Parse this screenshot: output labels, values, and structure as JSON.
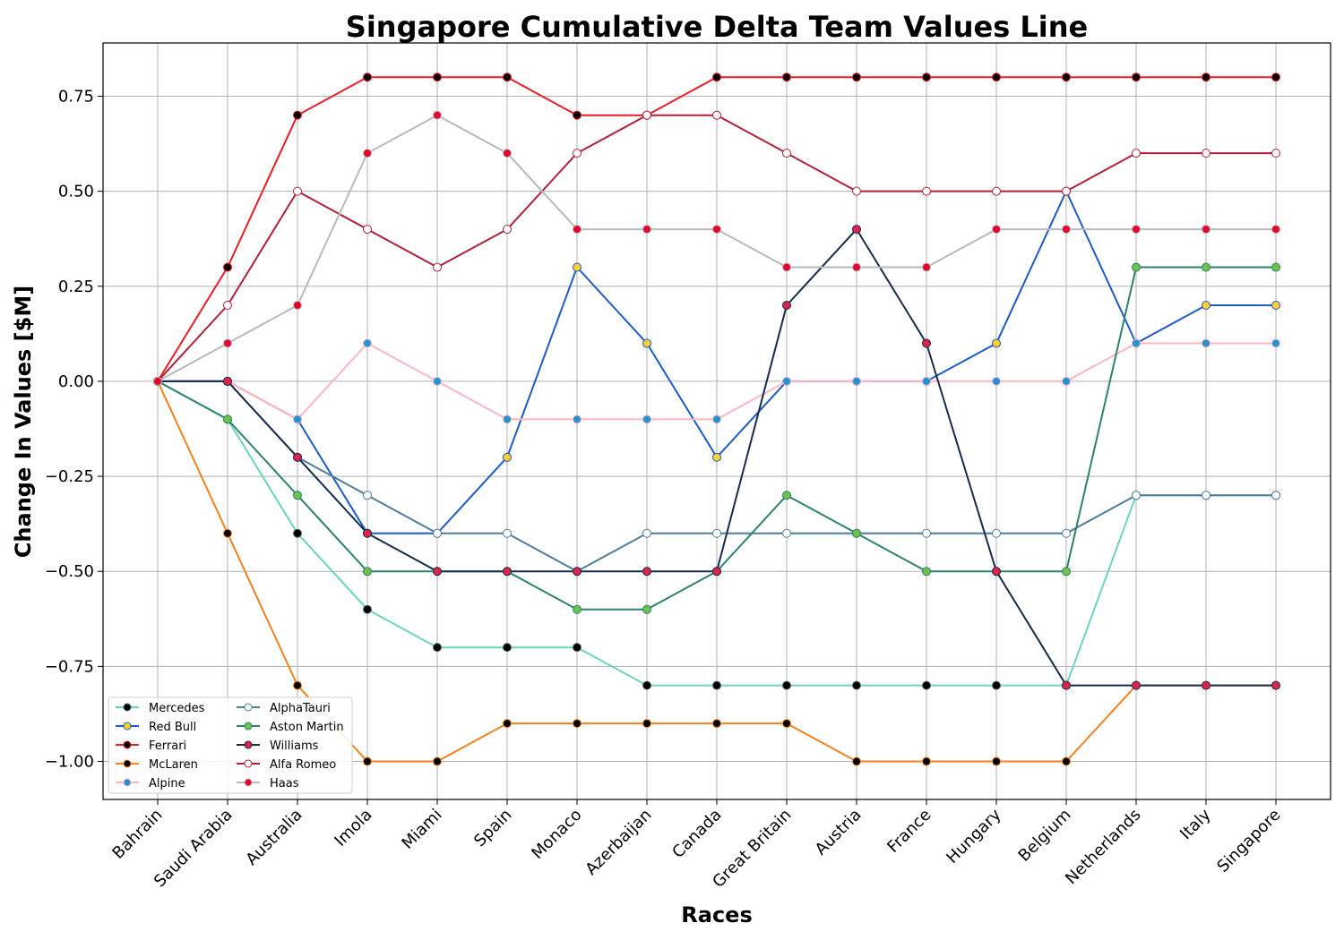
{
  "chart_data": {
    "type": "line",
    "title": "Singapore Cumulative Delta Team Values Line",
    "xlabel": "Races",
    "ylabel": "Change In Values [$M]",
    "categories": [
      "Bahrain",
      "Saudi Arabia",
      "Australia",
      "Imola",
      "Miami",
      "Spain",
      "Monaco",
      "Azerbaijan",
      "Canada",
      "Great Britain",
      "Austria",
      "France",
      "Hungary",
      "Belgium",
      "Netherlands",
      "Italy",
      "Singapore"
    ],
    "ylim": [
      -1.1,
      0.89
    ],
    "yticks": [
      -1.0,
      -0.75,
      -0.5,
      -0.25,
      0.0,
      0.25,
      0.5,
      0.75
    ],
    "ytick_labels": [
      "−1.00",
      "−0.75",
      "−0.50",
      "−0.25",
      "0.00",
      "0.25",
      "0.50",
      "0.75"
    ],
    "grid": true,
    "legend_position": "lower-left",
    "series": [
      {
        "name": "Mercedes",
        "line_color": "#6cd3bf",
        "marker_face": "#000000",
        "marker_edge": "#4d6a64",
        "values": [
          0,
          -0.1,
          -0.4,
          -0.6,
          -0.7,
          -0.7,
          -0.7,
          -0.8,
          -0.8,
          -0.8,
          -0.8,
          -0.8,
          -0.8,
          -0.8,
          -0.3,
          -0.3,
          -0.3
        ]
      },
      {
        "name": "Red Bull",
        "line_color": "#1e5bc6",
        "marker_face": "#ffd12e",
        "marker_edge": "#1e5bc6",
        "values": [
          0,
          0,
          -0.1,
          -0.4,
          -0.4,
          -0.2,
          0.3,
          0.1,
          -0.2,
          0,
          0,
          0,
          0.1,
          0.5,
          0.1,
          0.2,
          0.2
        ]
      },
      {
        "name": "Ferrari",
        "line_color": "#ed1c24",
        "marker_face": "#000000",
        "marker_edge": "#ed1c24",
        "values": [
          0,
          0.3,
          0.7,
          0.8,
          0.8,
          0.8,
          0.7,
          0.7,
          0.8,
          0.8,
          0.8,
          0.8,
          0.8,
          0.8,
          0.8,
          0.8,
          0.8
        ]
      },
      {
        "name": "McLaren",
        "line_color": "#f58020",
        "marker_face": "#000000",
        "marker_edge": "#f58020",
        "values": [
          0,
          -0.4,
          -0.8,
          -1.0,
          -1.0,
          -0.9,
          -0.9,
          -0.9,
          -0.9,
          -0.9,
          -1.0,
          -1.0,
          -1.0,
          -1.0,
          -0.8,
          -0.8,
          -0.8
        ]
      },
      {
        "name": "Alpine",
        "line_color": "#ffb6c1",
        "marker_face": "#2293d1",
        "marker_edge": "#ffb6c1",
        "values": [
          0,
          0,
          -0.1,
          0.1,
          0,
          -0.1,
          -0.1,
          -0.1,
          -0.1,
          0,
          0,
          0,
          0,
          0,
          0.1,
          0.1,
          0.1
        ]
      },
      {
        "name": "AlphaTauri",
        "line_color": "#4e7c9b",
        "marker_face": "#ffffff",
        "marker_edge": "#4e7c9b",
        "values": [
          0,
          0,
          -0.2,
          -0.3,
          -0.4,
          -0.4,
          -0.5,
          -0.4,
          -0.4,
          -0.4,
          -0.4,
          -0.4,
          -0.4,
          -0.4,
          -0.3,
          -0.3,
          -0.3
        ]
      },
      {
        "name": "Aston Martin",
        "line_color": "#2d826d",
        "marker_face": "#6cc24a",
        "marker_edge": "#2d826d",
        "values": [
          0,
          -0.1,
          -0.3,
          -0.5,
          -0.5,
          -0.5,
          -0.6,
          -0.6,
          -0.5,
          -0.3,
          -0.4,
          -0.5,
          -0.5,
          -0.5,
          0.3,
          0.3,
          0.3
        ]
      },
      {
        "name": "Williams",
        "line_color": "#172b4d",
        "marker_face": "#e0234a",
        "marker_edge": "#172b4d",
        "values": [
          0,
          0,
          -0.2,
          -0.4,
          -0.5,
          -0.5,
          -0.5,
          -0.5,
          -0.5,
          0.2,
          0.4,
          0.1,
          -0.5,
          -0.8,
          -0.8,
          -0.8,
          -0.8
        ]
      },
      {
        "name": "Alfa Romeo",
        "line_color": "#b12039",
        "marker_face": "#ffffff",
        "marker_edge": "#b12039",
        "values": [
          0,
          0.2,
          0.5,
          0.4,
          0.3,
          0.4,
          0.6,
          0.7,
          0.7,
          0.6,
          0.5,
          0.5,
          0.5,
          0.5,
          0.6,
          0.6,
          0.6
        ]
      },
      {
        "name": "Haas",
        "line_color": "#b6babd",
        "marker_face": "#e6002b",
        "marker_edge": "#b6babd",
        "values": [
          0,
          0.1,
          0.2,
          0.6,
          0.7,
          0.6,
          0.4,
          0.4,
          0.4,
          0.3,
          0.3,
          0.3,
          0.4,
          0.4,
          0.4,
          0.4,
          0.4
        ]
      }
    ]
  }
}
